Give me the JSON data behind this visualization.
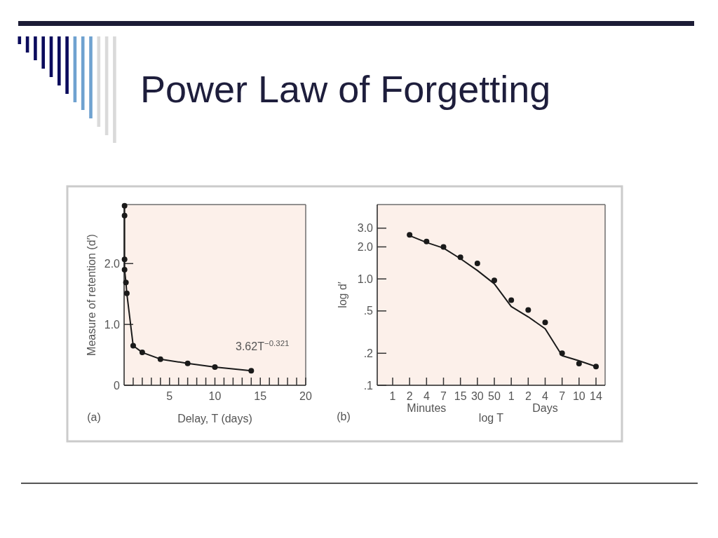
{
  "chart_data": [
    {
      "type": "line",
      "title": "Power Law of Forgetting",
      "xlabel": "Delay, T (days)",
      "ylabel": "Measure of retention (d′)",
      "x": [
        0.05,
        0.05,
        0.05,
        0.05,
        0.2,
        0.3,
        1,
        2,
        4,
        7,
        10,
        14
      ],
      "series": [
        {
          "color": "#1a1a1a",
          "marker": "circle",
          "values": [
            2.95,
            2.79,
            2.07,
            1.9,
            1.69,
            1.51,
            0.65,
            0.54,
            0.43,
            0.36,
            0.3,
            0.24
          ]
        }
      ],
      "xlim": [
        0,
        20
      ],
      "xticks": [
        {
          "value": 1,
          "label": null
        },
        {
          "value": 2,
          "label": null
        },
        {
          "value": 3,
          "label": null
        },
        {
          "value": 4,
          "label": null
        },
        5,
        {
          "value": 6,
          "label": null
        },
        {
          "value": 7,
          "label": null
        },
        {
          "value": 8,
          "label": null
        },
        {
          "value": 9,
          "label": null
        },
        10,
        {
          "value": 11,
          "label": null
        },
        {
          "value": 12,
          "label": null
        },
        {
          "value": 13,
          "label": null
        },
        {
          "value": 14,
          "label": null
        },
        15,
        {
          "value": 16,
          "label": null
        },
        {
          "value": 17,
          "label": null
        },
        {
          "value": 18,
          "label": null
        },
        {
          "value": 19,
          "label": null
        },
        20
      ],
      "ylim": [
        0,
        2.97
      ],
      "yticks": [
        0,
        {
          "value": 1,
          "label": "1.0"
        },
        {
          "value": 2,
          "label": "2.0"
        }
      ],
      "line_style": "solid",
      "annotations": [
        "3.62T$^{−0.321}$",
        "(a)"
      ]
    },
    {
      "type": "scatter",
      "xlabel": "log T",
      "ylabel": "log d′",
      "categories": [
        "1",
        "2",
        "4",
        "7",
        "15",
        "30",
        "50",
        "1",
        "2",
        "4",
        "7",
        "10",
        "14"
      ],
      "series": [
        {
          "color": "#1a1a1a",
          "marker": "circle",
          "values": [
            null,
            2.6,
            2.25,
            2.0,
            1.6,
            1.4,
            0.97,
            0.63,
            0.51,
            0.39,
            0.2,
            0.16,
            0.15
          ]
        },
        {
          "type": "line",
          "color": "#1a1a1a",
          "values": [
            null,
            2.55,
            2.2,
            1.95,
            1.55,
            1.2,
            0.9,
            0.55,
            0.44,
            0.34,
            0.19,
            0.17,
            0.15
          ]
        }
      ],
      "ylim": [
        0.1,
        5
      ],
      "yticks": [
        {
          "value": 0.1,
          "label": ".1"
        },
        {
          "value": 0.2,
          "label": ".2"
        },
        {
          "value": 0.5,
          "label": ".5"
        },
        {
          "value": 1,
          "label": "1.0"
        },
        {
          "value": 2,
          "label": "2.0"
        },
        {
          "value": 3,
          "label": "3.0"
        }
      ],
      "log": "y",
      "line_style": "solid",
      "annotations": [
        "Minutes",
        "Days",
        "(b)"
      ]
    }
  ]
}
